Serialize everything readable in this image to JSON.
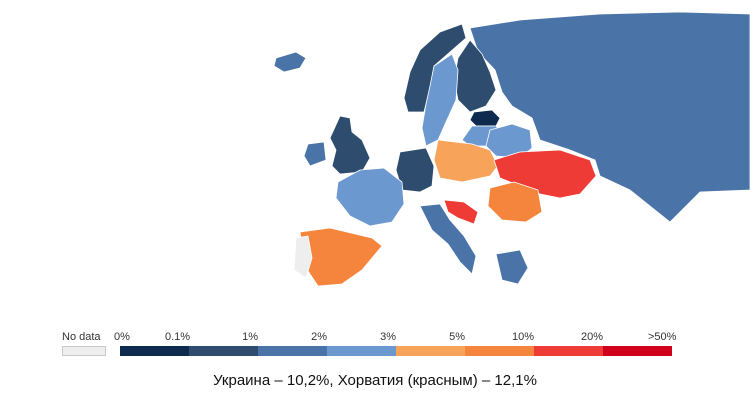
{
  "colors": {
    "water": "#ffffff",
    "outline": "#e2e2e2",
    "no_data": "#eeeeee",
    "bins": [
      "#0e2a4f",
      "#2e4d6e",
      "#4a74a8",
      "#6c98d0",
      "#f7a45a",
      "#f5843c",
      "#ef3b36",
      "#d0021b"
    ]
  },
  "legend": {
    "no_data_label": "No data",
    "ticks": [
      "0%",
      "0.1%",
      "1%",
      "2%",
      "3%",
      "5%",
      "10%",
      "20%",
      ">50%"
    ]
  },
  "regions": [
    {
      "name": "Russia",
      "bin": 2
    },
    {
      "name": "Finland",
      "bin": 1
    },
    {
      "name": "Norway",
      "bin": 1
    },
    {
      "name": "Sweden",
      "bin": 3
    },
    {
      "name": "Iceland",
      "bin": 2
    },
    {
      "name": "Estonia",
      "bin": 0
    },
    {
      "name": "Latvia",
      "bin": 3
    },
    {
      "name": "Belarus",
      "bin": 3
    },
    {
      "name": "United Kingdom",
      "bin": 1
    },
    {
      "name": "Ireland",
      "bin": 2
    },
    {
      "name": "Germany",
      "bin": 1
    },
    {
      "name": "Poland",
      "bin": 4
    },
    {
      "name": "Ukraine",
      "bin": 6
    },
    {
      "name": "France",
      "bin": 3
    },
    {
      "name": "Spain",
      "bin": 5
    },
    {
      "name": "Portugal",
      "bin": -1
    },
    {
      "name": "Italy",
      "bin": 2
    },
    {
      "name": "Romania",
      "bin": 5
    },
    {
      "name": "Croatia",
      "bin": 6
    },
    {
      "name": "Greece",
      "bin": 2
    }
  ],
  "caption": "Украина – 10,2%, Хорватия (красным) – 12,1%"
}
